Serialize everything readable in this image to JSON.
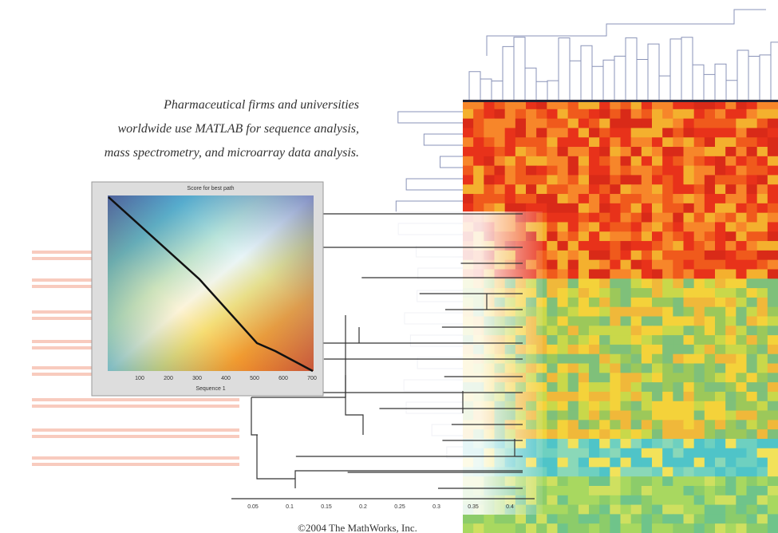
{
  "caption": {
    "lines": [
      "Pharmaceutical firms and universities",
      "worldwide use MATLAB for sequence analysis,",
      "mass spectrometry, and microarray data analysis."
    ]
  },
  "inset_plot": {
    "title": "Score for best path",
    "xlabel": "Sequence 1",
    "xticks": [
      "100",
      "200",
      "300",
      "400",
      "500",
      "600",
      "700"
    ]
  },
  "tree_axis": {
    "ticks": [
      "0.05",
      "0.1",
      "0.15",
      "0.2",
      "0.25",
      "0.3",
      "0.35",
      "0.4"
    ]
  },
  "footer": {
    "copyright": "©2004 The MathWorks, Inc."
  }
}
